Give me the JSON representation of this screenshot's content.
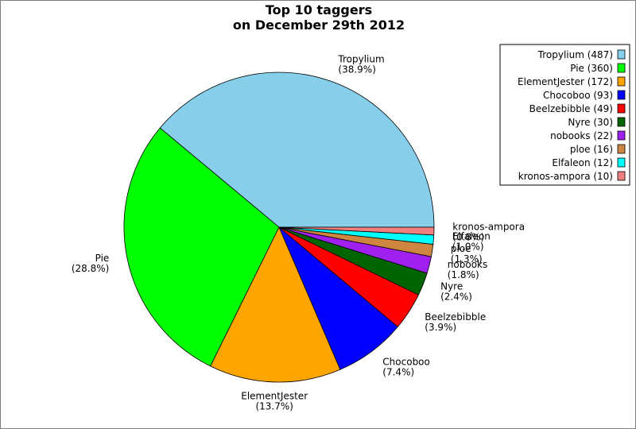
{
  "chart_data": {
    "type": "pie",
    "title": "Top 10 taggers",
    "subtitle": "on December 29th 2012",
    "slices": [
      {
        "label": "Tropylium",
        "value": 487,
        "percent": "38.9%",
        "legend": "Tropylium (487)",
        "color": "#87ceeb"
      },
      {
        "label": "Pie",
        "value": 360,
        "percent": "28.8%",
        "legend": "Pie (360)",
        "color": "#00ff00"
      },
      {
        "label": "ElementJester",
        "value": 172,
        "percent": "13.7%",
        "legend": "ElementJester (172)",
        "color": "#ffa500"
      },
      {
        "label": "Chocoboo",
        "value": 93,
        "percent": "7.4%",
        "legend": "Chocoboo (93)",
        "color": "#0000ff"
      },
      {
        "label": "Beelzebibble",
        "value": 49,
        "percent": "3.9%",
        "legend": "Beelzebibble (49)",
        "color": "#ff0000"
      },
      {
        "label": "Nyre",
        "value": 30,
        "percent": "2.4%",
        "legend": "Nyre (30)",
        "color": "#006400"
      },
      {
        "label": "nobooks",
        "value": 22,
        "percent": "1.8%",
        "legend": "nobooks (22)",
        "color": "#a020f0"
      },
      {
        "label": "ploe",
        "value": 16,
        "percent": "1.3%",
        "legend": "ploe (16)",
        "color": "#cd853f"
      },
      {
        "label": "Elfaleon",
        "value": 12,
        "percent": "1.0%",
        "legend": "Elfaleon (12)",
        "color": "#00ffff"
      },
      {
        "label": "kronos-ampora",
        "value": 10,
        "percent": "0.8%",
        "legend": "kronos-ampora (10)",
        "color": "#f08080"
      }
    ],
    "legend_position": "top-right"
  }
}
